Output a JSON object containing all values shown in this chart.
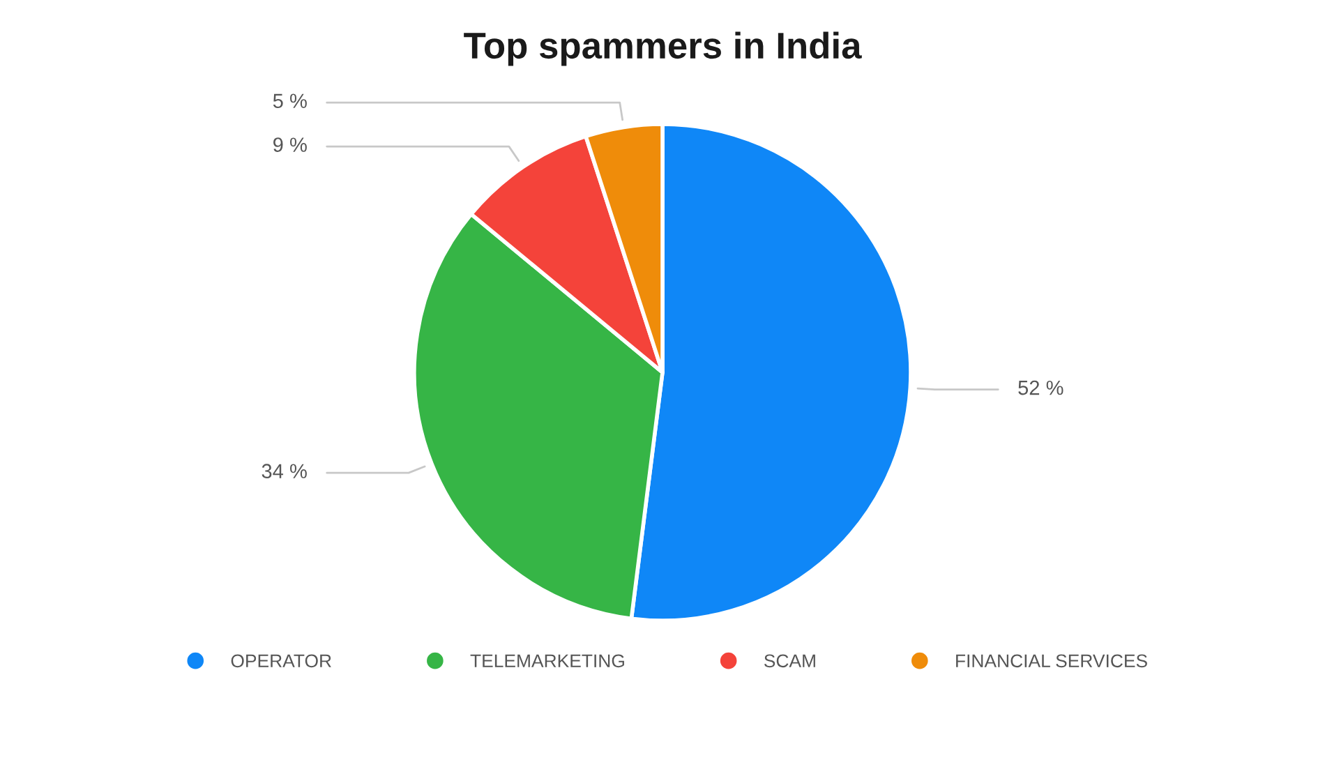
{
  "chart_data": {
    "type": "pie",
    "title": "Top spammers in India",
    "categories": [
      "OPERATOR",
      "TELEMARKETING",
      "SCAM",
      "FINANCIAL SERVICES"
    ],
    "values": [
      52,
      34,
      9,
      5
    ],
    "colors": [
      "#0f87f7",
      "#36b546",
      "#f4433a",
      "#ef8c0a"
    ],
    "value_labels": [
      "52 %",
      "34 %",
      "9 %",
      "5 %"
    ],
    "legend": "bottom"
  }
}
